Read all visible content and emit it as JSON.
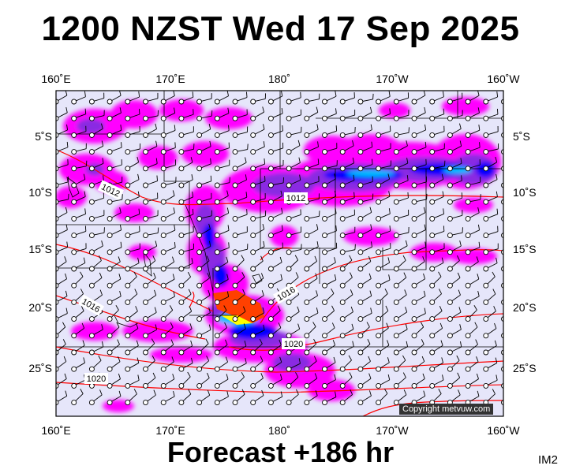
{
  "title": "1200 NZST Wed 17 Sep 2025",
  "forecast": "Forecast +186 hr",
  "panel_id": "IM2",
  "copyright": "Copyright metvuw.com",
  "lon_labels": [
    "160˚E",
    "170˚E",
    "180˚",
    "170˚W",
    "160˚W"
  ],
  "lat_labels": [
    "5˚S",
    "10˚S",
    "15˚S",
    "20˚S",
    "25˚S"
  ],
  "isobar_labels": [
    "1012",
    "1012",
    "1016",
    "1016",
    "1020",
    "1020"
  ],
  "colors": {
    "background": "#e6e6fa",
    "isobar": "#ff0000",
    "rain_light": "#ff00ff",
    "rain_mid": "#8a2be2",
    "rain_heavy": "#0000ff",
    "rain_extreme": "#ff4000"
  }
}
